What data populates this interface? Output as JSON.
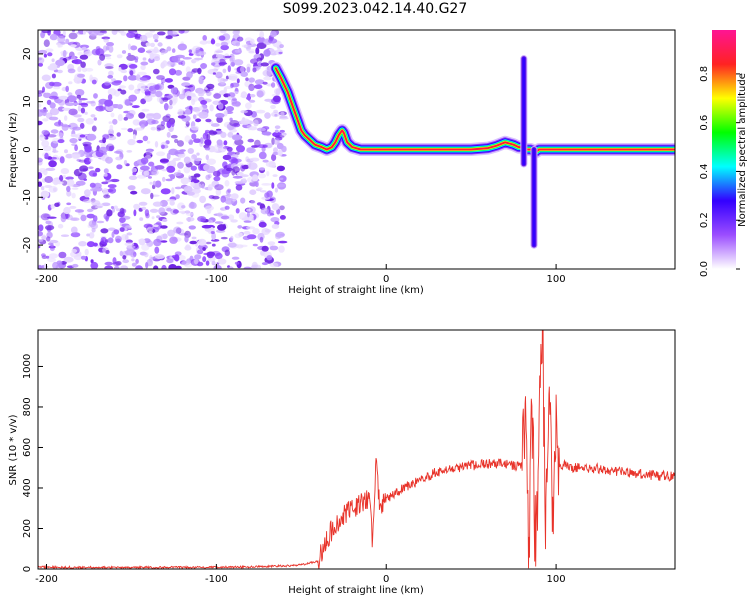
{
  "title": "S099.2023.042.14.40.G27",
  "colorbar": {
    "label": "Normalized spectral amplitude",
    "ticks": [
      "0.0",
      "0.2",
      "0.4",
      "0.6",
      "0.8"
    ],
    "stops": [
      "#ffffff",
      "#9b4dff",
      "#3300ff",
      "#00ffff",
      "#00ff00",
      "#ffff00",
      "#ff2222",
      "#ff1493"
    ]
  },
  "chart_data": [
    {
      "type": "heatmap",
      "title": "",
      "xlabel": "Height of straight line (km)",
      "ylabel": "Frequency (Hz)",
      "xlim": [
        -205,
        170
      ],
      "ylim": [
        -25,
        25
      ],
      "xticks": [
        -200,
        -100,
        0,
        100
      ],
      "yticks": [
        -20,
        -10,
        0,
        10,
        20
      ],
      "noise_region_x": [
        -205,
        -60
      ],
      "ridge": {
        "name": "",
        "x": [
          -65,
          -62,
          -58,
          -55,
          -52,
          -50,
          -48,
          -45,
          -42,
          -38,
          -35,
          -32,
          -30,
          -28,
          -26,
          -25,
          -23,
          -20,
          -15,
          -10,
          -5,
          0,
          5,
          10,
          50,
          60,
          65,
          70,
          75,
          78,
          80,
          82,
          85,
          88,
          90,
          95,
          100,
          120,
          140,
          160,
          170
        ],
        "y": [
          17,
          15,
          12,
          9,
          6,
          4,
          3,
          2,
          1,
          0.5,
          0,
          0.5,
          1.5,
          3,
          4,
          3.5,
          1.5,
          0.5,
          0,
          0,
          0,
          0,
          0,
          0,
          0,
          0.3,
          0.8,
          1.5,
          1,
          0.5,
          0.5,
          0,
          0,
          -0.5,
          0,
          0,
          0,
          0,
          0,
          0,
          0
        ]
      },
      "spikes": [
        {
          "x": 81,
          "y": [
            -3,
            19
          ]
        },
        {
          "x": 87,
          "y": [
            -20,
            0
          ]
        }
      ]
    },
    {
      "type": "line",
      "title": "",
      "xlabel": "Height of straight line (km)",
      "ylabel": "SNR (10 * v/v)",
      "xlim": [
        -205,
        170
      ],
      "ylim": [
        0,
        1180
      ],
      "xticks": [
        -200,
        -100,
        0,
        100
      ],
      "yticks": [
        0,
        200,
        400,
        600,
        800,
        1000
      ],
      "color": "#e8332a",
      "series": [
        {
          "name": "",
          "x": [
            -205,
            -180,
            -150,
            -120,
            -100,
            -80,
            -60,
            -50,
            -40,
            -35,
            -30,
            -25,
            -20,
            -15,
            -10,
            -8,
            -6,
            -4,
            -2,
            0,
            10,
            20,
            30,
            40,
            50,
            60,
            70,
            75,
            80,
            82,
            84,
            86,
            88,
            90,
            92,
            94,
            96,
            98,
            100,
            102,
            105,
            110,
            120,
            130,
            140,
            150,
            160,
            170
          ],
          "y": [
            10,
            8,
            8,
            8,
            10,
            10,
            15,
            20,
            40,
            150,
            220,
            260,
            300,
            320,
            350,
            120,
            540,
            320,
            330,
            340,
            400,
            440,
            480,
            500,
            510,
            520,
            520,
            510,
            500,
            700,
            180,
            800,
            80,
            700,
            1180,
            200,
            950,
            100,
            800,
            500,
            510,
            500,
            500,
            490,
            480,
            470,
            460,
            460
          ]
        }
      ]
    }
  ]
}
